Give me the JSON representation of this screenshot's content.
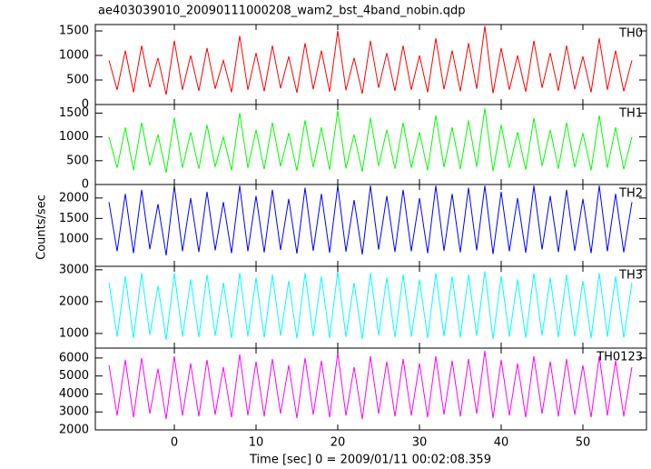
{
  "title": "ae403039010_20090111000208_wam2_bst_4band_nobin.qdp",
  "ylabel": "Counts/sec",
  "xlabel": "Time [sec] 0 = 2009/01/11 00:02:08.359",
  "chart_data": [
    {
      "type": "line",
      "xlim": [
        -9.67,
        57.78
      ],
      "xticks": [
        0,
        10,
        20,
        30,
        40,
        50
      ],
      "ylim": [
        0,
        1630
      ],
      "yticks": [
        0,
        500,
        1000,
        1500
      ],
      "x": [
        -8,
        -7,
        -6,
        -5,
        -4,
        -3,
        -2,
        -1,
        0,
        1,
        2,
        3,
        4,
        5,
        6,
        7,
        8,
        9,
        10,
        11,
        12,
        13,
        14,
        15,
        16,
        17,
        18,
        19,
        20,
        21,
        22,
        23,
        24,
        25,
        26,
        27,
        28,
        29,
        30,
        31,
        32,
        33,
        34,
        35,
        36,
        37,
        38,
        39,
        40,
        41,
        42,
        43,
        44,
        45,
        46,
        47,
        48,
        49,
        50,
        51,
        52,
        53,
        54,
        55,
        56
      ],
      "series": [
        {
          "name": "TH0",
          "color": "#ff0000",
          "values": [
            900,
            300,
            1100,
            250,
            1200,
            350,
            950,
            200,
            1300,
            300,
            1000,
            280,
            1150,
            320,
            900,
            250,
            1400,
            300,
            1050,
            270,
            1200,
            330,
            980,
            240,
            1250,
            310,
            1100,
            260,
            1500,
            290,
            950,
            220,
            1300,
            340,
            1050,
            280,
            1200,
            300,
            1000,
            250,
            1350,
            310,
            1100,
            270,
            1250,
            320,
            1600,
            230,
            1150,
            300,
            1000,
            260,
            1300,
            340,
            1050,
            280,
            1200,
            310,
            980,
            250,
            1350,
            300,
            1100,
            270,
            900
          ]
        }
      ]
    },
    {
      "type": "line",
      "xlim": [
        -9.67,
        57.78
      ],
      "xticks": [
        0,
        10,
        20,
        30,
        40,
        50
      ],
      "ylim": [
        0,
        1680
      ],
      "yticks": [
        0,
        500,
        1000,
        1500
      ],
      "x": [
        -8,
        -7,
        -6,
        -5,
        -4,
        -3,
        -2,
        -1,
        0,
        1,
        2,
        3,
        4,
        5,
        6,
        7,
        8,
        9,
        10,
        11,
        12,
        13,
        14,
        15,
        16,
        17,
        18,
        19,
        20,
        21,
        22,
        23,
        24,
        25,
        26,
        27,
        28,
        29,
        30,
        31,
        32,
        33,
        34,
        35,
        36,
        37,
        38,
        39,
        40,
        41,
        42,
        43,
        44,
        45,
        46,
        47,
        48,
        49,
        50,
        51,
        52,
        53,
        54,
        55,
        56
      ],
      "series": [
        {
          "name": "TH1",
          "color": "#00ff00",
          "values": [
            1000,
            350,
            1200,
            300,
            1300,
            400,
            1050,
            250,
            1400,
            350,
            1100,
            330,
            1250,
            370,
            1000,
            300,
            1500,
            350,
            1150,
            320,
            1300,
            380,
            1080,
            290,
            1350,
            360,
            1200,
            310,
            1550,
            340,
            1050,
            270,
            1400,
            390,
            1150,
            330,
            1300,
            350,
            1100,
            300,
            1450,
            360,
            1200,
            320,
            1350,
            370,
            1600,
            280,
            1250,
            350,
            1100,
            310,
            1400,
            390,
            1150,
            330,
            1300,
            360,
            1080,
            300,
            1450,
            350,
            1200,
            320,
            1000
          ]
        }
      ]
    },
    {
      "type": "line",
      "xlim": [
        -9.67,
        57.78
      ],
      "xticks": [
        0,
        10,
        20,
        30,
        40,
        50
      ],
      "ylim": [
        330,
        2330
      ],
      "yticks": [
        1000,
        1500,
        2000
      ],
      "x": [
        -8,
        -7,
        -6,
        -5,
        -4,
        -3,
        -2,
        -1,
        0,
        1,
        2,
        3,
        4,
        5,
        6,
        7,
        8,
        9,
        10,
        11,
        12,
        13,
        14,
        15,
        16,
        17,
        18,
        19,
        20,
        21,
        22,
        23,
        24,
        25,
        26,
        27,
        28,
        29,
        30,
        31,
        32,
        33,
        34,
        35,
        36,
        37,
        38,
        39,
        40,
        41,
        42,
        43,
        44,
        45,
        46,
        47,
        48,
        49,
        50,
        51,
        52,
        53,
        54,
        55,
        56
      ],
      "series": [
        {
          "name": "TH2",
          "color": "#0000ff",
          "values": [
            1900,
            700,
            2100,
            650,
            2200,
            750,
            1850,
            600,
            2300,
            700,
            2000,
            680,
            2150,
            720,
            1900,
            650,
            2300,
            700,
            2050,
            670,
            2200,
            730,
            1980,
            640,
            2250,
            710,
            2100,
            660,
            2300,
            690,
            1950,
            620,
            2300,
            740,
            2050,
            680,
            2200,
            700,
            2000,
            650,
            2300,
            710,
            2100,
            670,
            2250,
            720,
            2300,
            630,
            2150,
            700,
            2000,
            660,
            2300,
            740,
            2050,
            680,
            2200,
            710,
            1980,
            650,
            2300,
            700,
            2100,
            670,
            1900
          ]
        }
      ]
    },
    {
      "type": "line",
      "xlim": [
        -9.67,
        57.78
      ],
      "xticks": [
        0,
        10,
        20,
        30,
        40,
        50
      ],
      "ylim": [
        540,
        3110
      ],
      "yticks": [
        1000,
        2000,
        3000
      ],
      "x": [
        -8,
        -7,
        -6,
        -5,
        -4,
        -3,
        -2,
        -1,
        0,
        1,
        2,
        3,
        4,
        5,
        6,
        7,
        8,
        9,
        10,
        11,
        12,
        13,
        14,
        15,
        16,
        17,
        18,
        19,
        20,
        21,
        22,
        23,
        24,
        25,
        26,
        27,
        28,
        29,
        30,
        31,
        32,
        33,
        34,
        35,
        36,
        37,
        38,
        39,
        40,
        41,
        42,
        43,
        44,
        45,
        46,
        47,
        48,
        49,
        50,
        51,
        52,
        53,
        54,
        55,
        56
      ],
      "series": [
        {
          "name": "TH3",
          "color": "#00ffff",
          "values": [
            2600,
            900,
            2800,
            850,
            2900,
            950,
            2500,
            800,
            2900,
            900,
            2700,
            880,
            2850,
            920,
            2600,
            850,
            2900,
            900,
            2750,
            870,
            2850,
            930,
            2650,
            840,
            2900,
            910,
            2800,
            860,
            2950,
            890,
            2600,
            820,
            2900,
            940,
            2750,
            880,
            2850,
            900,
            2700,
            850,
            2900,
            910,
            2800,
            870,
            2850,
            920,
            2950,
            830,
            2800,
            900,
            2700,
            860,
            2900,
            940,
            2750,
            880,
            2850,
            910,
            2650,
            850,
            2900,
            900,
            2800,
            870,
            2600
          ]
        }
      ]
    },
    {
      "type": "line",
      "xlim": [
        -9.67,
        57.78
      ],
      "xticks": [
        0,
        10,
        20,
        30,
        40,
        50
      ],
      "ylim": [
        2000,
        6550
      ],
      "yticks": [
        2000,
        3000,
        4000,
        5000,
        6000
      ],
      "x": [
        -8,
        -7,
        -6,
        -5,
        -4,
        -3,
        -2,
        -1,
        0,
        1,
        2,
        3,
        4,
        5,
        6,
        7,
        8,
        9,
        10,
        11,
        12,
        13,
        14,
        15,
        16,
        17,
        18,
        19,
        20,
        21,
        22,
        23,
        24,
        25,
        26,
        27,
        28,
        29,
        30,
        31,
        32,
        33,
        34,
        35,
        36,
        37,
        38,
        39,
        40,
        41,
        42,
        43,
        44,
        45,
        46,
        47,
        48,
        49,
        50,
        51,
        52,
        53,
        54,
        55,
        56
      ],
      "series": [
        {
          "name": "TH0123",
          "color": "#ff00ff",
          "values": [
            5600,
            2800,
            5900,
            2700,
            6000,
            2900,
            5400,
            2600,
            6100,
            2800,
            5700,
            2750,
            5900,
            2850,
            5500,
            2700,
            6200,
            2800,
            5800,
            2750,
            5950,
            2900,
            5600,
            2650,
            6000,
            2850,
            5850,
            2700,
            6300,
            2800,
            5500,
            2600,
            6100,
            2900,
            5800,
            2750,
            5950,
            2800,
            5700,
            2700,
            6100,
            2850,
            5850,
            2750,
            5950,
            2900,
            6400,
            2650,
            5900,
            2800,
            5700,
            2700,
            6100,
            2900,
            5800,
            2750,
            5950,
            2850,
            5600,
            2700,
            6100,
            2800,
            5850,
            2750,
            5500
          ]
        }
      ]
    }
  ]
}
